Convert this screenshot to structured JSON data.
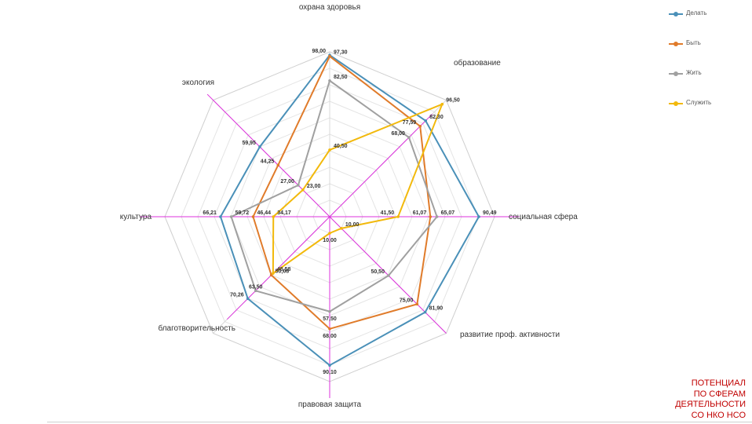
{
  "chart_data": {
    "type": "radar",
    "categories": [
      "охрана здоровья",
      "образование",
      "социальная сфера",
      "развитие проф. активности",
      "правовая защита",
      "благотворительность",
      "культура",
      "экология"
    ],
    "rlim": [
      0,
      100
    ],
    "grid": true,
    "legend": "top-right",
    "series": [
      {
        "name": "Делать",
        "color": "#4a90b8",
        "values": [
          98.0,
          82.3,
          90.49,
          81.9,
          90.1,
          70.26,
          66.21,
          59.95
        ]
      },
      {
        "name": "Быть",
        "color": "#e07b2a",
        "values": [
          97.3,
          77.59,
          61.07,
          75.0,
          68.0,
          50.08,
          46.44,
          44.25
        ]
      },
      {
        "name": "Жить",
        "color": "#a0a0a0",
        "values": [
          82.5,
          68.0,
          65.07,
          50.5,
          57.5,
          63.5,
          59.72,
          27.0
        ]
      },
      {
        "name": "Служить",
        "color": "#f2b90c",
        "values": [
          40.5,
          96.5,
          41.5,
          10.0,
          10.0,
          48.58,
          34.17,
          23.0
        ]
      }
    ],
    "value_labels": [
      {
        "text": "98,00",
        "cat": 0,
        "value": 98.0,
        "anchor": "end"
      },
      {
        "text": "97,30",
        "cat": 0,
        "value": 97.3,
        "anchor": "start"
      },
      {
        "text": "82,50",
        "cat": 0,
        "value": 82.5,
        "anchor": "start"
      },
      {
        "text": "40,50",
        "cat": 0,
        "value": 40.5,
        "anchor": "start"
      },
      {
        "text": "96,50",
        "cat": 1,
        "value": 96.5,
        "anchor": "start"
      },
      {
        "text": "82,30",
        "cat": 1,
        "value": 82.3,
        "anchor": "start"
      },
      {
        "text": "77,59",
        "cat": 1,
        "value": 77.59,
        "anchor": "end"
      },
      {
        "text": "68,00",
        "cat": 1,
        "value": 68.0,
        "anchor": "end"
      },
      {
        "text": "90,49",
        "cat": 2,
        "value": 90.49,
        "anchor": "start"
      },
      {
        "text": "65,07",
        "cat": 2,
        "value": 65.07,
        "anchor": "start"
      },
      {
        "text": "61,07",
        "cat": 2,
        "value": 61.07,
        "anchor": "end"
      },
      {
        "text": "41,50",
        "cat": 2,
        "value": 41.5,
        "anchor": "end"
      },
      {
        "text": "81,90",
        "cat": 3,
        "value": 81.9,
        "anchor": "start"
      },
      {
        "text": "75,00",
        "cat": 3,
        "value": 75.0,
        "anchor": "end"
      },
      {
        "text": "50,50",
        "cat": 3,
        "value": 50.5,
        "anchor": "end"
      },
      {
        "text": "10,00",
        "cat": 3,
        "value": 10.0,
        "anchor": "start"
      },
      {
        "text": "90,10",
        "cat": 4,
        "value": 90.1,
        "anchor": "middle"
      },
      {
        "text": "68,00",
        "cat": 4,
        "value": 68.0,
        "anchor": "middle"
      },
      {
        "text": "57,50",
        "cat": 4,
        "value": 57.5,
        "anchor": "middle"
      },
      {
        "text": "10,00",
        "cat": 4,
        "value": 10.0,
        "anchor": "middle"
      },
      {
        "text": "70,26",
        "cat": 5,
        "value": 70.26,
        "anchor": "end"
      },
      {
        "text": "63,50",
        "cat": 5,
        "value": 63.5,
        "anchor": "middle"
      },
      {
        "text": "50,08",
        "cat": 5,
        "value": 50.08,
        "anchor": "start"
      },
      {
        "text": "48,58",
        "cat": 5,
        "value": 48.58,
        "anchor": "start"
      },
      {
        "text": "66,21",
        "cat": 6,
        "value": 66.21,
        "anchor": "end"
      },
      {
        "text": "59,72",
        "cat": 6,
        "value": 59.72,
        "anchor": "start"
      },
      {
        "text": "46,44",
        "cat": 6,
        "value": 46.44,
        "anchor": "start"
      },
      {
        "text": "34,17",
        "cat": 6,
        "value": 34.17,
        "anchor": "start"
      },
      {
        "text": "59,95",
        "cat": 7,
        "value": 59.95,
        "anchor": "end"
      },
      {
        "text": "44,25",
        "cat": 7,
        "value": 44.25,
        "anchor": "end"
      },
      {
        "text": "27,00",
        "cat": 7,
        "value": 27.0,
        "anchor": "end"
      },
      {
        "text": "23,00",
        "cat": 7,
        "value": 23.0,
        "anchor": "start"
      }
    ]
  },
  "axis_line_color": "#dd33dd",
  "title_lines": [
    "ПОТЕНЦИАЛ",
    "ПО СФЕРАМ",
    "ДЕЯТЕЛЬНОСТИ",
    "СО НКО НСО"
  ]
}
